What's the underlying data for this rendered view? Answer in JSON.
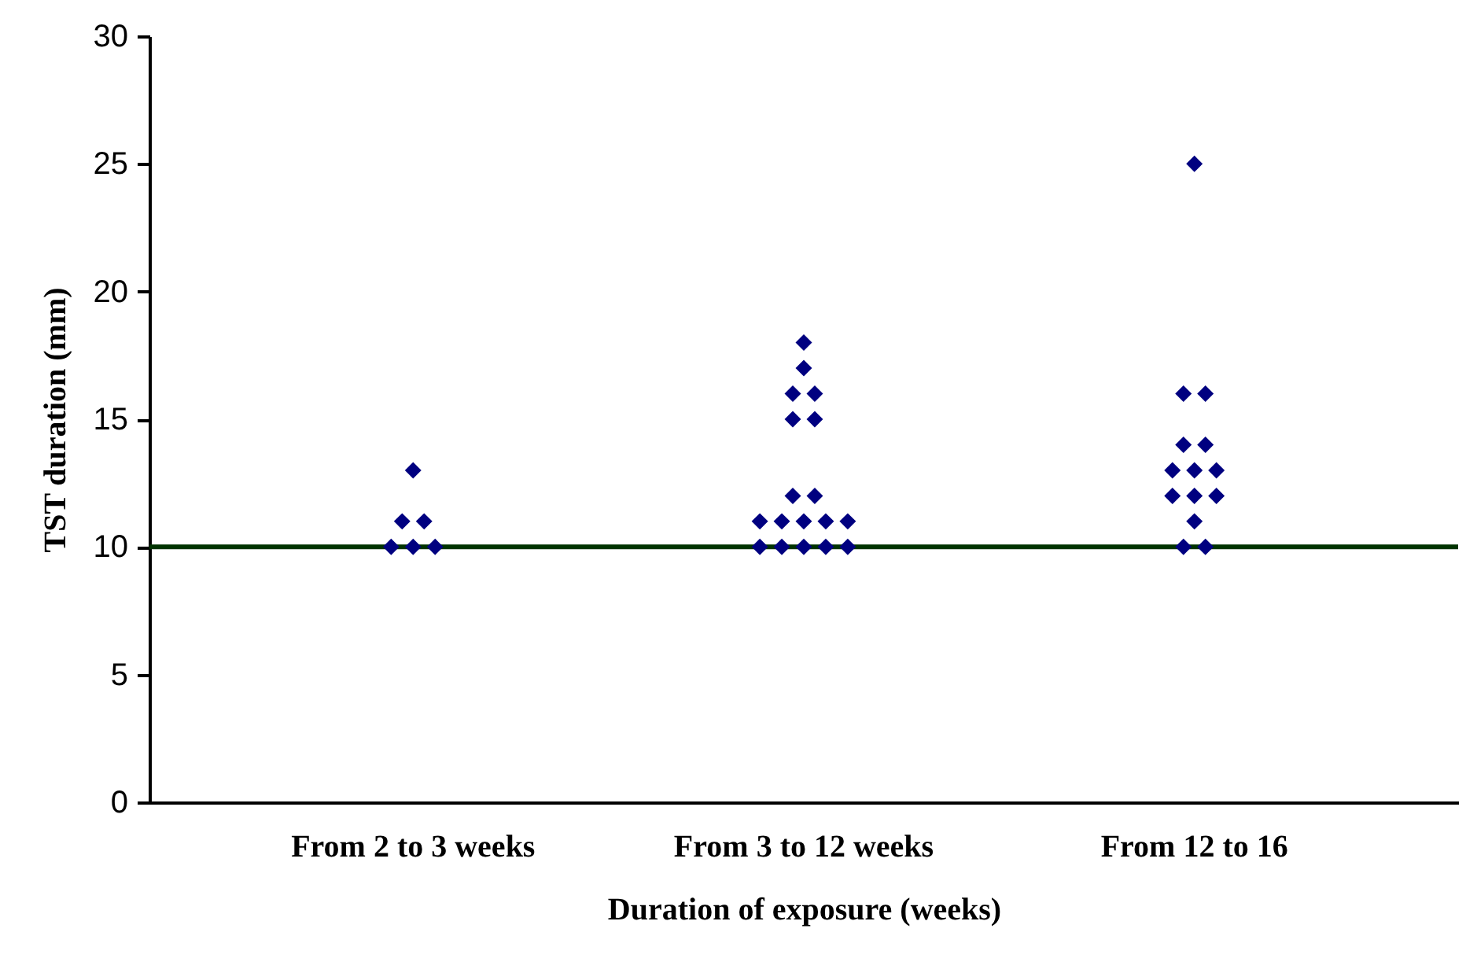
{
  "chart_data": {
    "type": "scatter",
    "xlabel": "Duration of exposure (weeks)",
    "ylabel": "TST duration (mm)",
    "categories": [
      "From 2 to 3 weeks",
      "From 3 to 12 weeks",
      "From 12 to 16"
    ],
    "ylim": [
      0,
      30
    ],
    "yticks": [
      0,
      5,
      10,
      15,
      20,
      25,
      30
    ],
    "grid": false,
    "marker": "diamond",
    "series": [
      {
        "color": "#000080",
        "x": [
          "From 2 to 3 weeks",
          "From 2 to 3 weeks",
          "From 2 to 3 weeks",
          "From 2 to 3 weeks",
          "From 2 to 3 weeks",
          "From 2 to 3 weeks",
          "From 3 to 12 weeks",
          "From 3 to 12 weeks",
          "From 3 to 12 weeks",
          "From 3 to 12 weeks",
          "From 3 to 12 weeks",
          "From 3 to 12 weeks",
          "From 3 to 12 weeks",
          "From 3 to 12 weeks",
          "From 3 to 12 weeks",
          "From 3 to 12 weeks",
          "From 3 to 12 weeks",
          "From 3 to 12 weeks",
          "From 3 to 12 weeks",
          "From 3 to 12 weeks",
          "From 3 to 12 weeks",
          "From 3 to 12 weeks",
          "From 3 to 12 weeks",
          "From 3 to 12 weeks",
          "From 12 to 16",
          "From 12 to 16",
          "From 12 to 16",
          "From 12 to 16",
          "From 12 to 16",
          "From 12 to 16",
          "From 12 to 16",
          "From 12 to 16",
          "From 12 to 16",
          "From 12 to 16",
          "From 12 to 16",
          "From 12 to 16",
          "From 12 to 16",
          "From 12 to 16"
        ],
        "values": [
          13,
          11,
          11,
          10,
          10,
          10,
          18,
          17,
          16,
          16,
          15,
          15,
          12,
          12,
          11,
          11,
          11,
          11,
          11,
          10,
          10,
          10,
          10,
          10,
          25,
          16,
          16,
          14,
          14,
          13,
          13,
          13,
          12,
          12,
          12,
          11,
          10,
          10
        ]
      }
    ],
    "ref_lines": [
      {
        "axis": "y",
        "value": 10,
        "color": "#003300"
      }
    ]
  }
}
